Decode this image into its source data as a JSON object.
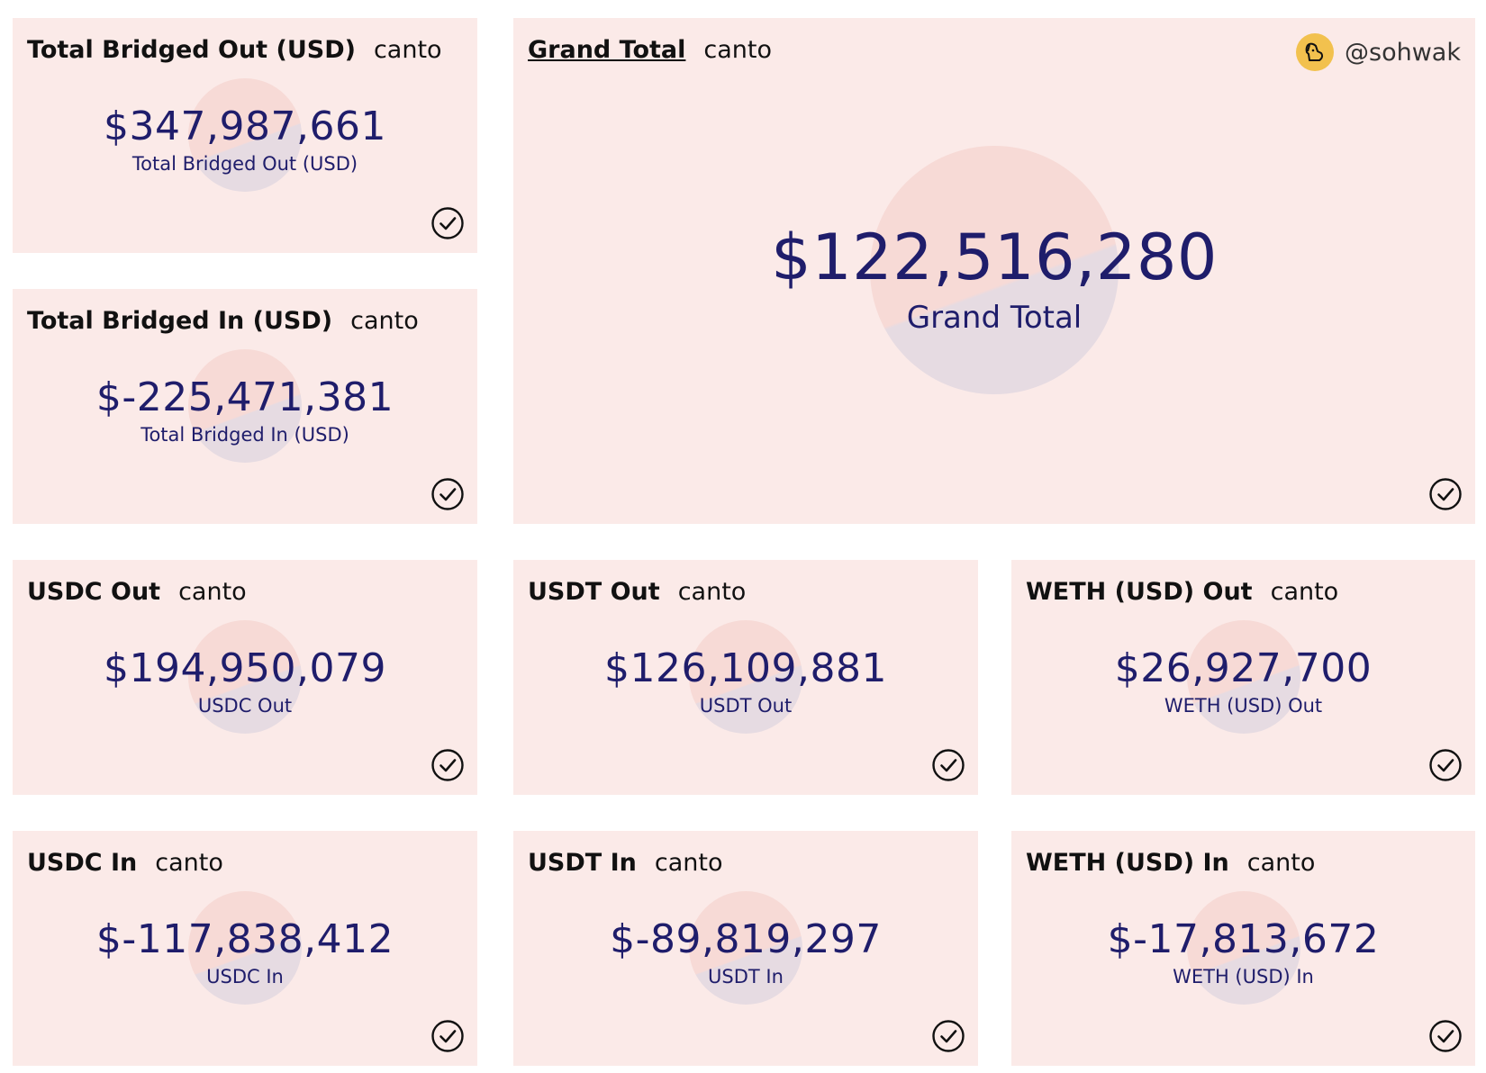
{
  "source": "canto",
  "user": {
    "handle": "@sohwak"
  },
  "cards": {
    "total_out": {
      "title": "Total Bridged Out (USD)",
      "value": "$347,987,661",
      "label": "Total Bridged Out (USD)"
    },
    "total_in": {
      "title": "Total Bridged In (USD)",
      "value": "$-225,471,381",
      "label": "Total Bridged In (USD)"
    },
    "grand_total": {
      "title": "Grand Total",
      "value": "$122,516,280",
      "label": "Grand Total"
    },
    "usdc_out": {
      "title": "USDC Out",
      "value": "$194,950,079",
      "label": "USDC Out"
    },
    "usdt_out": {
      "title": "USDT Out",
      "value": "$126,109,881",
      "label": "USDT Out"
    },
    "weth_out": {
      "title": "WETH (USD) Out",
      "value": "$26,927,700",
      "label": "WETH (USD) Out"
    },
    "usdc_in": {
      "title": "USDC In",
      "value": "$-117,838,412",
      "label": "USDC In"
    },
    "usdt_in": {
      "title": "USDT In",
      "value": "$-89,819,297",
      "label": "USDT In"
    },
    "weth_in": {
      "title": "WETH (USD) In",
      "value": "$-17,813,672",
      "label": "WETH (USD) In"
    }
  },
  "icons": {
    "status": "check-circle-icon",
    "avatar": "dog-icon"
  },
  "colors": {
    "card_bg": "#fbeae8",
    "value_text": "#1f1d6b",
    "avatar_bg": "#f2c14e"
  }
}
